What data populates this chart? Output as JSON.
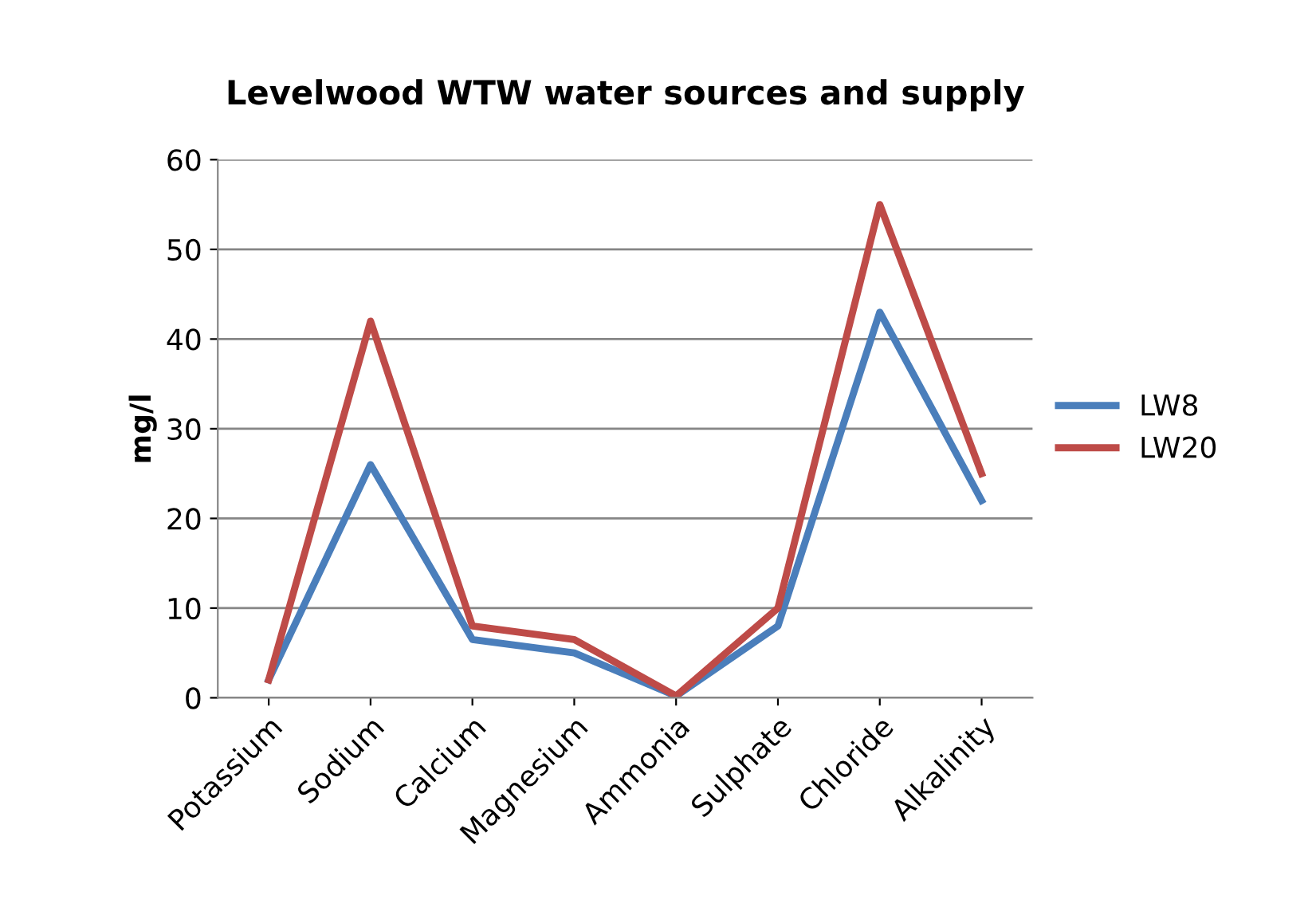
{
  "chart_data": {
    "type": "line",
    "title": "Levelwood WTW water sources and supply",
    "ylabel": "mg/l",
    "categories": [
      "Potassium",
      "Sodium",
      "Calcium",
      "Magnesium",
      "Ammonia",
      "Sulphate",
      "Chloride",
      "Alkalinity"
    ],
    "series": [
      {
        "name": "LW8",
        "color": "#4a7ebb",
        "values": [
          2,
          26,
          6.5,
          5,
          0.2,
          8,
          43,
          22
        ]
      },
      {
        "name": "LW20",
        "color": "#be4b48",
        "values": [
          2,
          42,
          8,
          6.5,
          0.2,
          10,
          55,
          25
        ]
      }
    ],
    "ylim": [
      0,
      60
    ],
    "yticks": [
      0,
      10,
      20,
      30,
      40,
      50,
      60
    ],
    "grid": "y",
    "legend": "right",
    "marker": "none",
    "line_style": "solid"
  }
}
